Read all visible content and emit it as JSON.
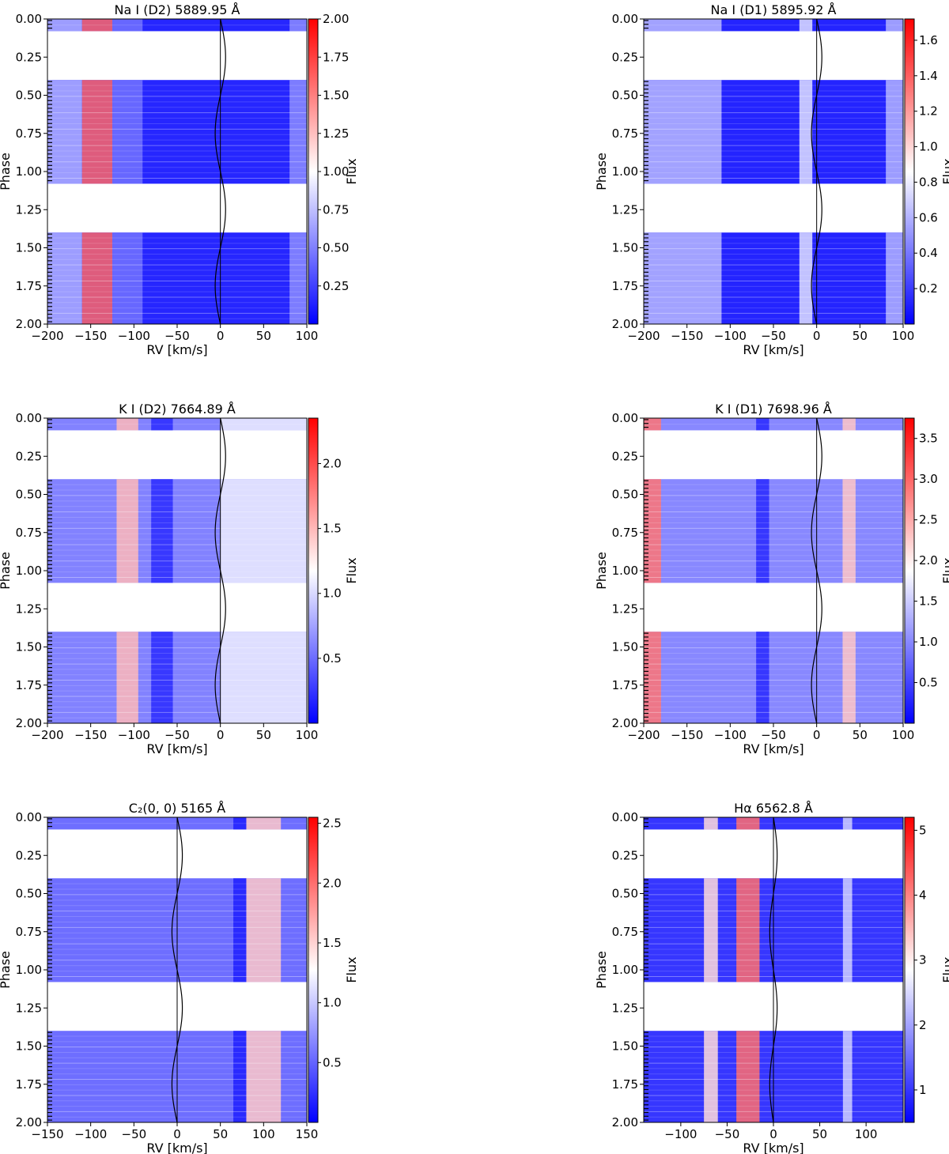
{
  "colors": {
    "low": "#0000ff",
    "mid": "#ffffff",
    "high": "#ff0000",
    "line": "#000000",
    "frame": "#000000"
  },
  "chart_data": [
    {
      "type": "heatmap",
      "title": "Na I (D2)  5889.95 Å",
      "xlabel": "RV [km/s]",
      "ylabel": "Phase",
      "colorbar_label": "Flux",
      "xlim": [
        -200,
        100
      ],
      "ylim": [
        2.0,
        0.0
      ],
      "xticks": [
        "−200",
        "−150",
        "−100",
        "−50",
        "0",
        "50",
        "100"
      ],
      "xtick_values": [
        -200,
        -150,
        -100,
        -50,
        0,
        50,
        100
      ],
      "yticks": [
        "0.00",
        "0.25",
        "0.50",
        "0.75",
        "1.00",
        "1.25",
        "1.50",
        "1.75",
        "2.00"
      ],
      "ytick_values": [
        0,
        0.25,
        0.5,
        0.75,
        1.0,
        1.25,
        1.5,
        1.75,
        2.0
      ],
      "clim": [
        0.0,
        2.0
      ],
      "cticks": [
        "0.25",
        "0.50",
        "0.75",
        "1.00",
        "1.25",
        "1.50",
        "1.75",
        "2.00"
      ],
      "ctick_values": [
        0.25,
        0.5,
        0.75,
        1.0,
        1.25,
        1.5,
        1.75,
        2.0
      ],
      "observed_phase_bands": [
        [
          0.0,
          0.08
        ],
        [
          0.4,
          1.08
        ],
        [
          1.4,
          2.0
        ]
      ],
      "rv_curve": {
        "center": 0,
        "amplitude": 6
      },
      "features": [
        {
          "x_range": [
            -200,
            100
          ],
          "level": 0.15
        },
        {
          "x_range": [
            -200,
            -160
          ],
          "level": 0.7
        },
        {
          "x_range": [
            -160,
            -125
          ],
          "level": 1.6
        },
        {
          "x_range": [
            -125,
            -90
          ],
          "level": 0.45
        },
        {
          "x_range": [
            80,
            100
          ],
          "level": 0.55
        }
      ]
    },
    {
      "type": "heatmap",
      "title": "Na I (D1)  5895.92 Å",
      "xlabel": "RV [km/s]",
      "ylabel": "Phase",
      "colorbar_label": "Flux",
      "xlim": [
        -200,
        100
      ],
      "ylim": [
        2.0,
        0.0
      ],
      "xticks": [
        "−200",
        "−150",
        "−100",
        "−50",
        "0",
        "50",
        "100"
      ],
      "xtick_values": [
        -200,
        -150,
        -100,
        -50,
        0,
        50,
        100
      ],
      "yticks": [
        "0.00",
        "0.25",
        "0.50",
        "0.75",
        "1.00",
        "1.25",
        "1.50",
        "1.75",
        "2.00"
      ],
      "ytick_values": [
        0,
        0.25,
        0.5,
        0.75,
        1.0,
        1.25,
        1.5,
        1.75,
        2.0
      ],
      "clim": [
        0.0,
        1.72
      ],
      "cticks": [
        "0.2",
        "0.4",
        "0.6",
        "0.8",
        "1.0",
        "1.2",
        "1.4",
        "1.6"
      ],
      "ctick_values": [
        0.2,
        0.4,
        0.6,
        0.8,
        1.0,
        1.2,
        1.4,
        1.6
      ],
      "observed_phase_bands": [
        [
          0.0,
          0.08
        ],
        [
          0.4,
          1.08
        ],
        [
          1.4,
          2.0
        ]
      ],
      "rv_curve": {
        "center": 0,
        "amplitude": 6
      },
      "features": [
        {
          "x_range": [
            -200,
            100
          ],
          "level": 0.12
        },
        {
          "x_range": [
            -200,
            -110
          ],
          "level": 0.62
        },
        {
          "x_range": [
            -20,
            -5
          ],
          "level": 0.75
        },
        {
          "x_range": [
            80,
            100
          ],
          "level": 0.6
        }
      ]
    },
    {
      "type": "heatmap",
      "title": "K I (D2)  7664.89 Å",
      "xlabel": "RV [km/s]",
      "ylabel": "Phase",
      "colorbar_label": "Flux",
      "xlim": [
        -200,
        100
      ],
      "ylim": [
        2.0,
        0.0
      ],
      "xticks": [
        "−200",
        "−150",
        "−100",
        "−50",
        "0",
        "50",
        "100"
      ],
      "xtick_values": [
        -200,
        -150,
        -100,
        -50,
        0,
        50,
        100
      ],
      "yticks": [
        "0.00",
        "0.25",
        "0.50",
        "0.75",
        "1.00",
        "1.25",
        "1.50",
        "1.75",
        "2.00"
      ],
      "ytick_values": [
        0,
        0.25,
        0.5,
        0.75,
        1.0,
        1.25,
        1.5,
        1.75,
        2.0
      ],
      "clim": [
        0.0,
        2.35
      ],
      "cticks": [
        "0.5",
        "1.0",
        "1.5",
        "2.0"
      ],
      "ctick_values": [
        0.5,
        1.0,
        1.5,
        2.0
      ],
      "observed_phase_bands": [
        [
          0.0,
          0.08
        ],
        [
          0.4,
          1.08
        ],
        [
          1.4,
          2.0
        ]
      ],
      "rv_curve": {
        "center": 0,
        "amplitude": 6
      },
      "features": [
        {
          "x_range": [
            -200,
            100
          ],
          "level": 0.6
        },
        {
          "x_range": [
            -120,
            -95
          ],
          "level": 1.5
        },
        {
          "x_range": [
            -80,
            -55
          ],
          "level": 0.2
        },
        {
          "x_range": [
            0,
            100
          ],
          "level": 1.1
        }
      ]
    },
    {
      "type": "heatmap",
      "title": "K I (D1)  7698.96 Å",
      "xlabel": "RV [km/s]",
      "ylabel": "Phase",
      "colorbar_label": "Flux",
      "xlim": [
        -200,
        100
      ],
      "ylim": [
        2.0,
        0.0
      ],
      "xticks": [
        "−200",
        "−150",
        "−100",
        "−50",
        "0",
        "50",
        "100"
      ],
      "xtick_values": [
        -200,
        -150,
        -100,
        -50,
        0,
        50,
        100
      ],
      "yticks": [
        "0.00",
        "0.25",
        "0.50",
        "0.75",
        "1.00",
        "1.25",
        "1.50",
        "1.75",
        "2.00"
      ],
      "ytick_values": [
        0,
        0.25,
        0.5,
        0.75,
        1.0,
        1.25,
        1.5,
        1.75,
        2.0
      ],
      "clim": [
        0.0,
        3.75
      ],
      "cticks": [
        "0.5",
        "1.0",
        "1.5",
        "2.0",
        "2.5",
        "3.0",
        "3.5"
      ],
      "ctick_values": [
        0.5,
        1.0,
        1.5,
        2.0,
        2.5,
        3.0,
        3.5
      ],
      "observed_phase_bands": [
        [
          0.0,
          0.08
        ],
        [
          0.4,
          1.08
        ],
        [
          1.4,
          2.0
        ]
      ],
      "rv_curve": {
        "center": 0,
        "amplitude": 6
      },
      "features": [
        {
          "x_range": [
            -200,
            100
          ],
          "level": 1.0
        },
        {
          "x_range": [
            -200,
            -180
          ],
          "level": 2.9
        },
        {
          "x_range": [
            -70,
            -55
          ],
          "level": 0.3
        },
        {
          "x_range": [
            30,
            45
          ],
          "level": 2.3
        }
      ]
    },
    {
      "type": "heatmap",
      "title": "C₂(0, 0)  5165 Å",
      "xlabel": "RV [km/s]",
      "ylabel": "Phase",
      "colorbar_label": "Flux",
      "xlim": [
        -150,
        150
      ],
      "ylim": [
        2.0,
        0.0
      ],
      "xticks": [
        "−150",
        "−100",
        "−50",
        "0",
        "50",
        "100",
        "150"
      ],
      "xtick_values": [
        -150,
        -100,
        -50,
        0,
        50,
        100,
        150
      ],
      "yticks": [
        "0.00",
        "0.25",
        "0.50",
        "0.75",
        "1.00",
        "1.25",
        "1.50",
        "1.75",
        "2.00"
      ],
      "ytick_values": [
        0,
        0.25,
        0.5,
        0.75,
        1.0,
        1.25,
        1.5,
        1.75,
        2.0
      ],
      "clim": [
        0.0,
        2.55
      ],
      "cticks": [
        "0.5",
        "1.0",
        "1.5",
        "2.0",
        "2.5"
      ],
      "ctick_values": [
        0.5,
        1.0,
        1.5,
        2.0,
        2.5
      ],
      "observed_phase_bands": [
        [
          0.0,
          0.08
        ],
        [
          0.4,
          1.08
        ],
        [
          1.4,
          2.0
        ]
      ],
      "rv_curve": {
        "center": 0,
        "amplitude": 6
      },
      "features": [
        {
          "x_range": [
            -150,
            60
          ],
          "level": 0.55
        },
        {
          "x_range": [
            65,
            80
          ],
          "level": 0.15
        },
        {
          "x_range": [
            80,
            120
          ],
          "level": 1.55
        }
      ]
    },
    {
      "type": "heatmap",
      "title": "Hα  6562.8 Å",
      "xlabel": "RV [km/s]",
      "ylabel": "Phase",
      "colorbar_label": "Flux",
      "xlim": [
        -140,
        140
      ],
      "ylim": [
        2.0,
        0.0
      ],
      "xticks": [
        "−100",
        "−50",
        "0",
        "50",
        "100"
      ],
      "xtick_values": [
        -100,
        -50,
        0,
        50,
        100
      ],
      "yticks": [
        "0.00",
        "0.25",
        "0.50",
        "0.75",
        "1.00",
        "1.25",
        "1.50",
        "1.75",
        "2.00"
      ],
      "ytick_values": [
        0,
        0.25,
        0.5,
        0.75,
        1.0,
        1.25,
        1.5,
        1.75,
        2.0
      ],
      "clim": [
        0.5,
        5.2
      ],
      "cticks": [
        "1",
        "2",
        "3",
        "4",
        "5"
      ],
      "ctick_values": [
        1,
        2,
        3,
        4,
        5
      ],
      "observed_phase_bands": [
        [
          0.0,
          0.08
        ],
        [
          0.4,
          1.08
        ],
        [
          1.4,
          2.0
        ]
      ],
      "rv_curve": {
        "center": 0,
        "amplitude": 4
      },
      "features": [
        {
          "x_range": [
            -140,
            140
          ],
          "level": 1.0
        },
        {
          "x_range": [
            -75,
            -60
          ],
          "level": 3.2
        },
        {
          "x_range": [
            -40,
            -15
          ],
          "level": 4.2
        },
        {
          "x_range": [
            75,
            85
          ],
          "level": 2.4
        }
      ]
    }
  ]
}
